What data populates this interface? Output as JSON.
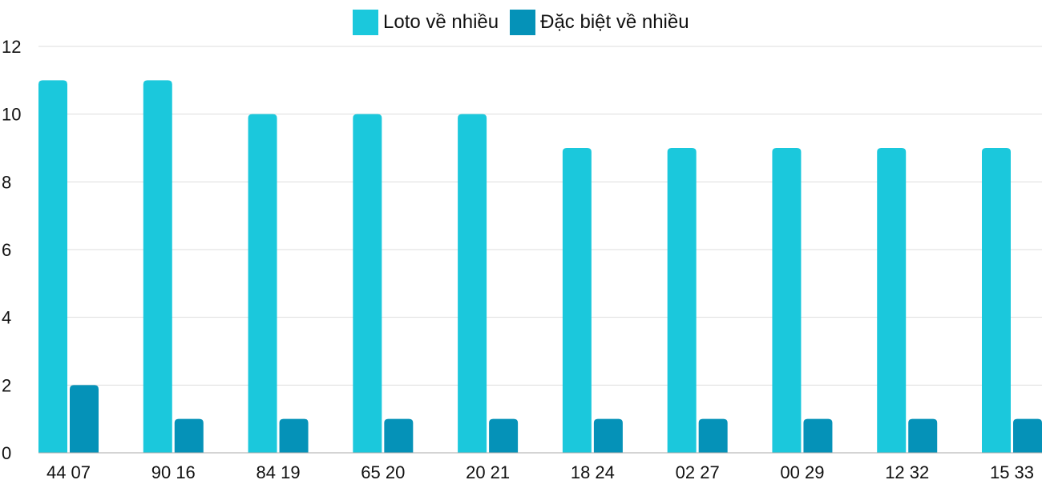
{
  "chart_data": {
    "type": "bar",
    "title": "",
    "xlabel": "",
    "ylabel": "",
    "ylim": [
      0,
      12
    ],
    "yticks": [
      0,
      2,
      4,
      6,
      8,
      10,
      12
    ],
    "grid": true,
    "legend_position": "top-center",
    "categories": [
      "44 07",
      "90 16",
      "84 19",
      "65 20",
      "20 21",
      "18 24",
      "02 27",
      "00 29",
      "12 32",
      "15 33"
    ],
    "series": [
      {
        "name": "Loto về nhiều",
        "color": "#1bc8dc",
        "values": [
          11,
          11,
          10,
          10,
          10,
          9,
          9,
          9,
          9,
          9
        ]
      },
      {
        "name": "Đặc biệt về nhiều",
        "color": "#0592b8",
        "values": [
          2,
          1,
          1,
          1,
          1,
          1,
          1,
          1,
          1,
          1
        ]
      }
    ]
  }
}
